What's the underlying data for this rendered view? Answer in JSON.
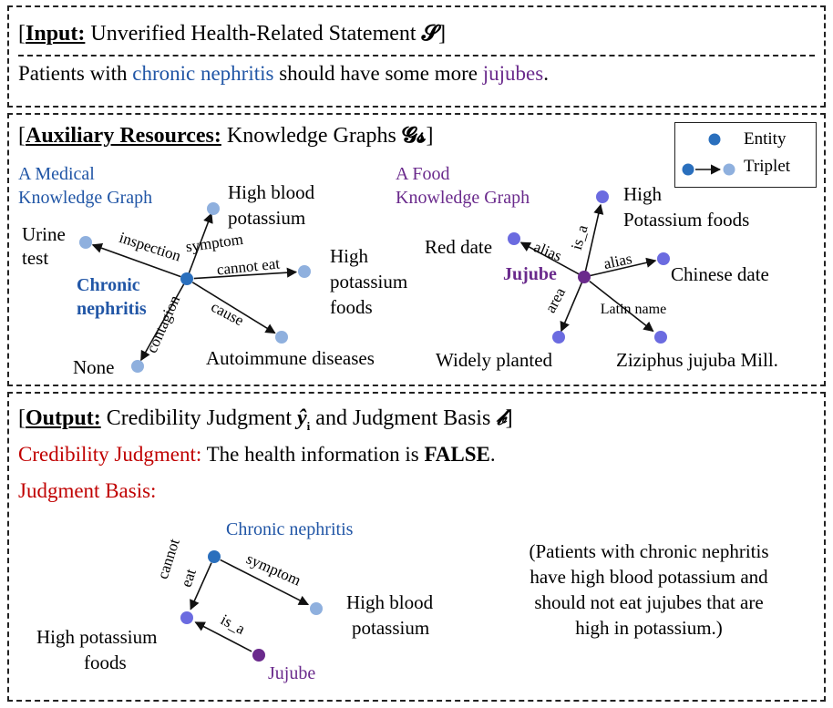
{
  "input": {
    "prefix_bracket": "[",
    "title_bold": "Input:",
    "title_rest": " Unverified Health-Related Statement ",
    "symbol": "𝓢",
    "suffix_bracket": "]",
    "statement_part1": "Patients with ",
    "statement_entity1": "chronic nephritis",
    "statement_part2": " should have some more ",
    "statement_entity2": "jujubes",
    "statement_part3": "."
  },
  "aux": {
    "title_bold": "Auxiliary Resources:",
    "title_rest": " Knowledge Graphs ",
    "symbol": "𝓖𝓼",
    "legend": {
      "entity": "Entity",
      "triplet": "Triplet"
    },
    "medical": {
      "title_line1": "A Medical",
      "title_line2": "Knowledge Graph",
      "center_line1": "Chronic",
      "center_line2": "nephritis",
      "nodes": {
        "urine_line1": "Urine",
        "urine_line2": "test",
        "hbp_line1": "High blood",
        "hbp_line2": "potassium",
        "hpf_line1": "High",
        "hpf_line2": "potassium",
        "hpf_line3": "foods",
        "auto": "Autoimmune diseases",
        "none": "None"
      },
      "edges": {
        "inspection": "inspection",
        "symptom": "symptom",
        "cannot_eat": "cannot eat",
        "cause": "cause",
        "contagion": "contagion"
      }
    },
    "food": {
      "title_line1": "A Food",
      "title_line2": "Knowledge Graph",
      "center": "Jujube",
      "nodes": {
        "red_date": "Red date",
        "hpf_line1": "High",
        "hpf_line2": "Potassium foods",
        "chinese_date": "Chinese date",
        "widely": "Widely planted",
        "ziziphus": "Ziziphus jujuba Mill."
      },
      "edges": {
        "alias1": "alias",
        "is_a": "is_a",
        "alias2": "alias",
        "area": "area",
        "latin": "Latin name"
      }
    }
  },
  "output": {
    "title_bold": "Output:",
    "title_rest1": " Credibility Judgment ",
    "symbol1": "ŷ",
    "symbol1_sub": "i",
    "title_rest2": " and Judgment Basis ",
    "symbol2": "𝒷",
    "cred_label": "Credibility Judgment:",
    "cred_text": " The health information is ",
    "cred_value": "FALSE",
    "cred_end": ".",
    "basis_label": "Judgment Basis:",
    "graph": {
      "chronic": "Chronic nephritis",
      "hbp_line1": "High blood",
      "hbp_line2": "potassium",
      "hpf_line1": "High potassium",
      "hpf_line2": "foods",
      "jujube": "Jujube",
      "edge_symptom": "symptom",
      "edge_cannot": "cannot",
      "edge_eat": "eat",
      "edge_isa": "is_a"
    },
    "explanation_line1": "(Patients with chronic nephritis",
    "explanation_line2": "have high blood potassium and",
    "explanation_line3": "should not eat jujubes that are",
    "explanation_line4": "high in potassium.)"
  },
  "colors": {
    "entity_dark": "#2a6fbd",
    "entity_light": "#8fb0de",
    "food_node": "#6b6be0",
    "jujube_node": "#6a2a8c",
    "text_blue": "#2156a6",
    "text_purple": "#6a2a8c",
    "text_red": "#c00000"
  }
}
